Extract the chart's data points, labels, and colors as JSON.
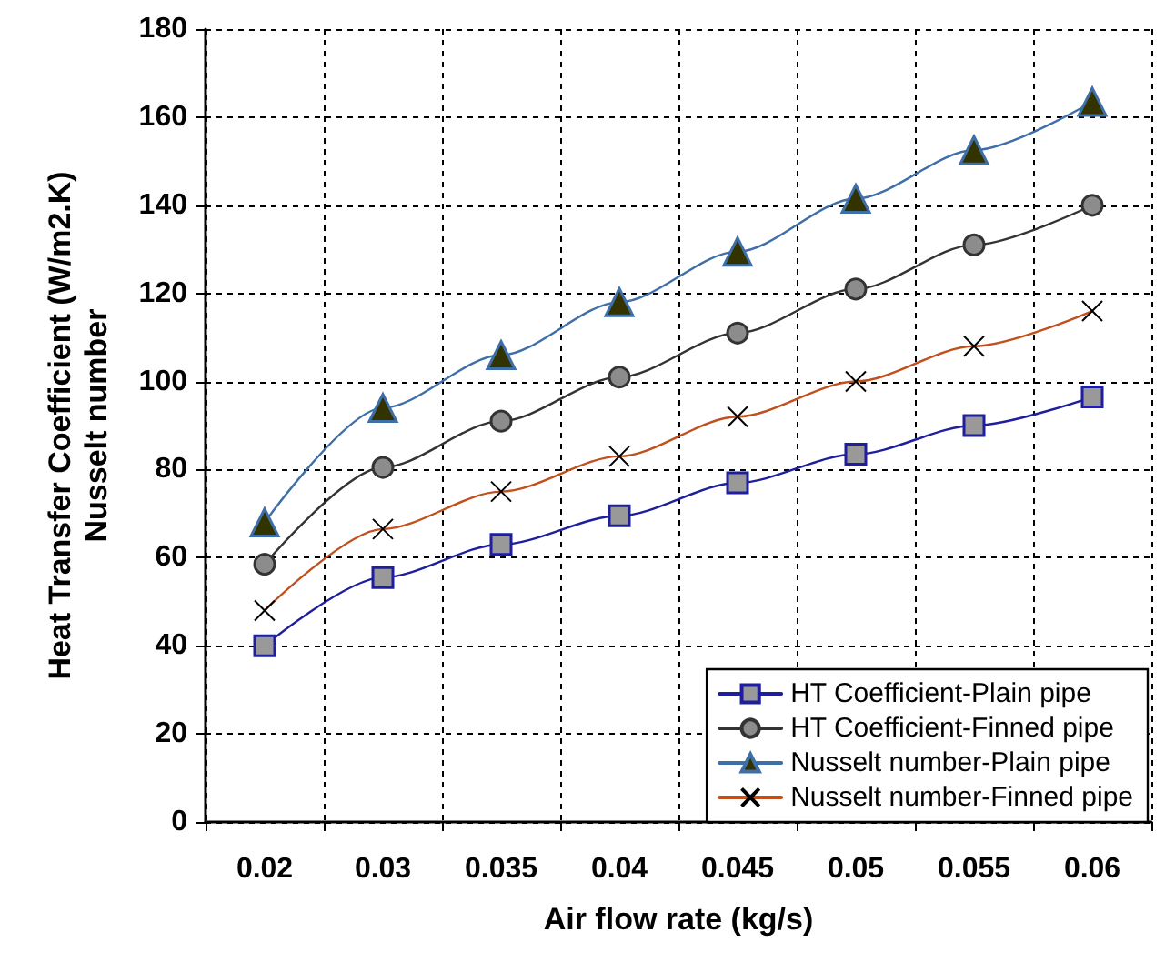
{
  "chart_data": {
    "type": "line",
    "xlabel": "Air flow rate (kg/s)",
    "ylabel": "Heat Transfer Coefficient (W/m2.K)\nNusselt number",
    "categories": [
      "0.02",
      "0.03",
      "0.035",
      "0.04",
      "0.045",
      "0.05",
      "0.055",
      "0.06"
    ],
    "series": [
      {
        "name": "HT Coefficient-Plain pipe",
        "color": "#1f1f9e",
        "marker": "square",
        "values": [
          40,
          55.5,
          63,
          69.5,
          77,
          83.5,
          90,
          96.5
        ]
      },
      {
        "name": "HT Coefficient-Finned pipe",
        "color": "#333333",
        "marker": "circle",
        "values": [
          58.5,
          80.5,
          91,
          101,
          111,
          121,
          131,
          140
        ]
      },
      {
        "name": "Nusselt number-Plain pipe",
        "color": "#3f6fa8",
        "marker": "triangle",
        "values": [
          68,
          94,
          106,
          118,
          129.5,
          141.5,
          152.5,
          163.5
        ]
      },
      {
        "name": "Nusselt number-Finned pipe",
        "color": "#c0501e",
        "marker": "cross",
        "values": [
          48,
          66.5,
          75,
          83,
          92,
          100,
          108,
          116
        ]
      }
    ],
    "ylim": [
      0,
      180
    ],
    "yticks": [
      0,
      20,
      40,
      60,
      80,
      100,
      120,
      140,
      160,
      180
    ],
    "grid": true,
    "legend": "bottom right",
    "line_style": "solid"
  }
}
